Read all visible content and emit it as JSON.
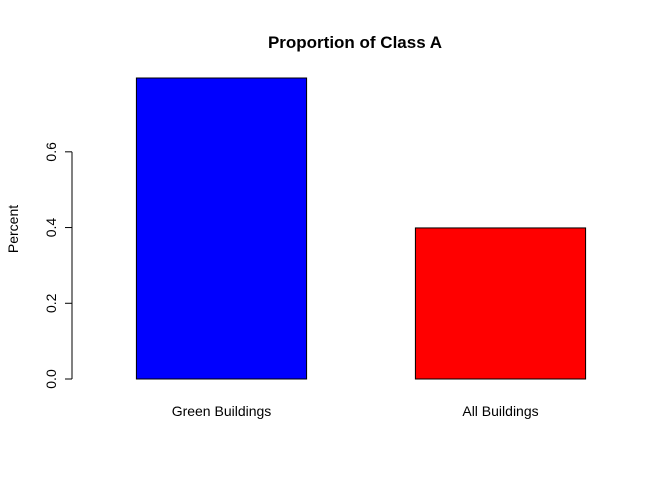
{
  "chart_data": {
    "type": "bar",
    "title": "Proportion of Class A",
    "xlabel": "",
    "ylabel": "Percent",
    "categories": [
      "Green Buildings",
      "All Buildings"
    ],
    "values": [
      0.795,
      0.399
    ],
    "colors": [
      "#0000ff",
      "#ff0000"
    ],
    "ylim": [
      0,
      0.795
    ],
    "yticks": [
      0,
      0.2,
      0.4,
      0.6
    ],
    "ytick_labels": [
      "0.0",
      "0.2",
      "0.4",
      "0.6"
    ],
    "grid": false,
    "legend": "none"
  }
}
